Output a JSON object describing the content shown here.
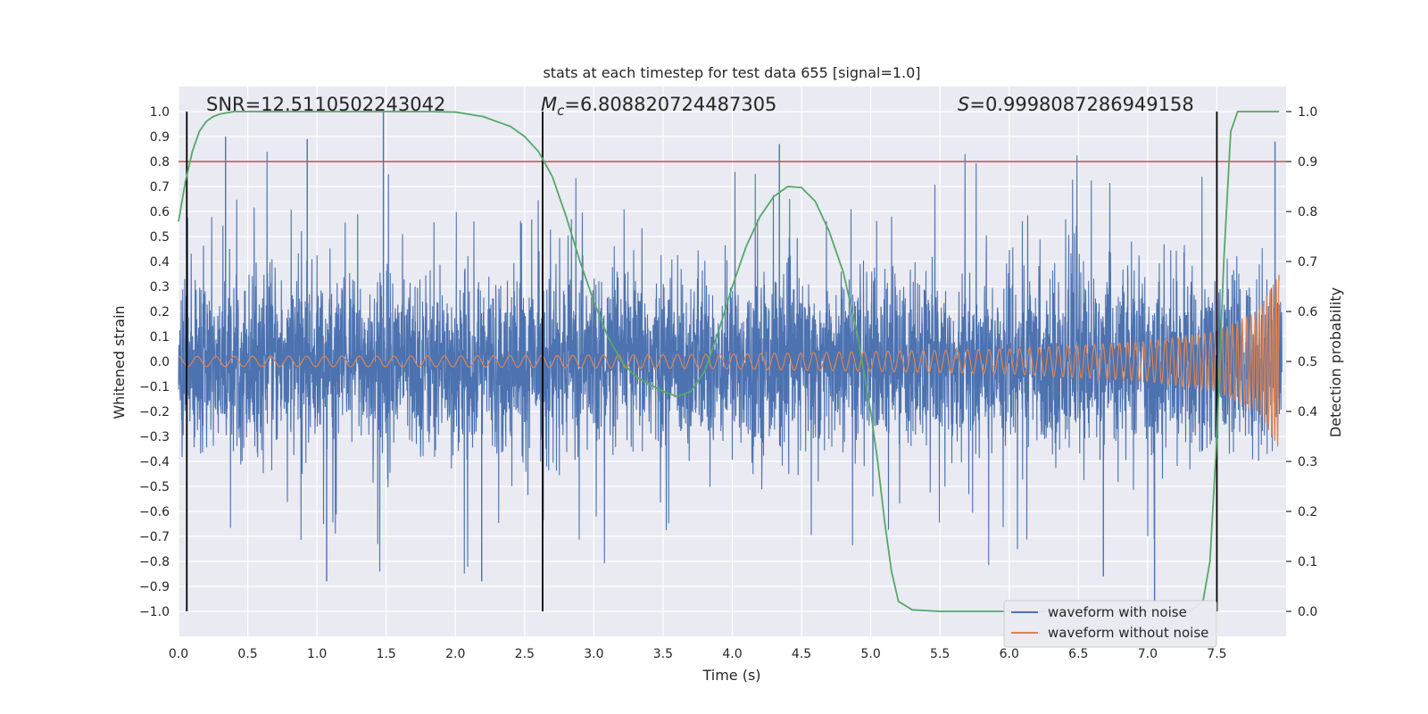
{
  "chart_data": {
    "type": "line",
    "title": "stats at each timestep for test data 655 [signal=1.0]",
    "xlabel": "Time (s)",
    "ylabel": "Whitened strain",
    "ylabel_right": "Detection probability",
    "xlim": [
      0,
      8
    ],
    "ylim": [
      -1.1,
      1.1
    ],
    "ylim_right": [
      -0.05,
      1.05
    ],
    "x_ticks": [
      0.0,
      0.5,
      1.0,
      1.5,
      2.0,
      2.5,
      3.0,
      3.5,
      4.0,
      4.5,
      5.0,
      5.5,
      6.0,
      6.5,
      7.0,
      7.5
    ],
    "x_tick_labels": [
      "0.0",
      "0.5",
      "1.0",
      "1.5",
      "2.0",
      "2.5",
      "3.0",
      "3.5",
      "4.0",
      "4.5",
      "5.0",
      "5.5",
      "6.0",
      "6.5",
      "7.0",
      "7.5"
    ],
    "y_ticks": [
      -1.0,
      -0.9,
      -0.8,
      -0.7,
      -0.6,
      -0.5,
      -0.4,
      -0.3,
      -0.2,
      -0.1,
      0.0,
      0.1,
      0.2,
      0.3,
      0.4,
      0.5,
      0.6,
      0.7,
      0.8,
      0.9,
      1.0
    ],
    "y_tick_labels": [
      "−1.0",
      "−0.9",
      "−0.8",
      "−0.7",
      "−0.6",
      "−0.5",
      "−0.4",
      "−0.3",
      "−0.2",
      "−0.1",
      "0.0",
      "0.1",
      "0.2",
      "0.3",
      "0.4",
      "0.5",
      "0.6",
      "0.7",
      "0.8",
      "0.9",
      "1.0"
    ],
    "y_right_ticks": [
      0.0,
      0.1,
      0.2,
      0.3,
      0.4,
      0.5,
      0.6,
      0.7,
      0.8,
      0.9,
      1.0
    ],
    "y_right_tick_labels": [
      "0.0",
      "0.1",
      "0.2",
      "0.3",
      "0.4",
      "0.5",
      "0.6",
      "0.7",
      "0.8",
      "0.9",
      "1.0"
    ],
    "grid": true,
    "legend_position": "bottom-right",
    "annotations": {
      "snr": "SNR=12.5110502243042",
      "mc_symbol": "M",
      "mc_sub": "c",
      "mc_value": "=6.808820724487305",
      "s_symbol": "S",
      "s_value": "=0.9998087286949158"
    },
    "threshold": {
      "y": 0.8,
      "color": "#c44e52"
    },
    "vertical_markers": [
      0.06,
      2.63,
      7.5
    ],
    "series": [
      {
        "name": "waveform with noise",
        "color": "#4c72b0",
        "description_stats": {
          "mean": 0.0,
          "typical_range": [
            -0.45,
            0.45
          ],
          "extremes": [
            -0.88,
            1.0
          ]
        }
      },
      {
        "name": "waveform without noise",
        "color": "#dd8452",
        "envelope": {
          "t": [
            0,
            2,
            4,
            6,
            7,
            7.5,
            7.8,
            7.95
          ],
          "amplitude": [
            0.02,
            0.022,
            0.03,
            0.05,
            0.08,
            0.12,
            0.2,
            0.35
          ]
        }
      },
      {
        "name": "detection probability",
        "color": "#55a868",
        "axis": "right",
        "x": [
          0.0,
          0.05,
          0.1,
          0.15,
          0.2,
          0.25,
          0.3,
          0.4,
          0.5,
          0.7,
          1.0,
          1.5,
          1.8,
          2.0,
          2.2,
          2.4,
          2.5,
          2.6,
          2.7,
          2.8,
          2.9,
          3.0,
          3.1,
          3.2,
          3.3,
          3.4,
          3.5,
          3.6,
          3.7,
          3.8,
          3.9,
          4.0,
          4.1,
          4.2,
          4.3,
          4.4,
          4.5,
          4.6,
          4.7,
          4.8,
          4.9,
          5.0,
          5.05,
          5.1,
          5.15,
          5.2,
          5.3,
          5.5,
          6.0,
          6.5,
          7.0,
          7.3,
          7.4,
          7.45,
          7.5,
          7.55,
          7.6,
          7.65,
          7.7,
          7.8,
          7.95
        ],
        "y": [
          0.78,
          0.86,
          0.92,
          0.96,
          0.98,
          0.99,
          0.995,
          1.0,
          1.0,
          1.0,
          1.0,
          1.0,
          1.0,
          0.999,
          0.99,
          0.97,
          0.95,
          0.92,
          0.87,
          0.79,
          0.7,
          0.62,
          0.55,
          0.5,
          0.47,
          0.455,
          0.44,
          0.43,
          0.44,
          0.48,
          0.56,
          0.65,
          0.73,
          0.79,
          0.83,
          0.85,
          0.848,
          0.82,
          0.76,
          0.68,
          0.56,
          0.4,
          0.3,
          0.18,
          0.08,
          0.02,
          0.003,
          0.0,
          0.0,
          0.0,
          0.0,
          0.0,
          0.02,
          0.1,
          0.35,
          0.7,
          0.96,
          1.0,
          1.0,
          1.0,
          1.0
        ]
      }
    ]
  }
}
